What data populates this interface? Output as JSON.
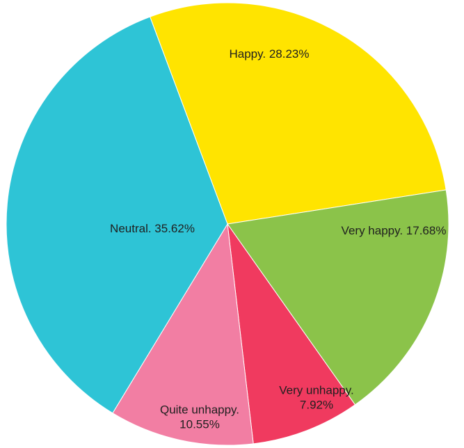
{
  "chart_data": {
    "type": "pie",
    "categories": [
      "Happy",
      "Very happy",
      "Very unhappy",
      "Quite unhappy",
      "Neutral"
    ],
    "values": [
      28.23,
      17.68,
      7.92,
      10.55,
      35.62
    ],
    "colors": [
      "#FFE400",
      "#8BC34A",
      "#F03A5F",
      "#F27EA3",
      "#2EC4D6"
    ],
    "labels": [
      {
        "lines": [
          "Happy. 28.23%"
        ]
      },
      {
        "lines": [
          "Very happy. 17.68%"
        ]
      },
      {
        "lines": [
          "Very unhappy.",
          "7.92%"
        ]
      },
      {
        "lines": [
          "Quite unhappy.",
          "10.55%"
        ]
      },
      {
        "lines": [
          "Neutral. 35.62%"
        ]
      }
    ],
    "start_angle_deg": -20.5,
    "direction": "clockwise",
    "legend": "none"
  }
}
